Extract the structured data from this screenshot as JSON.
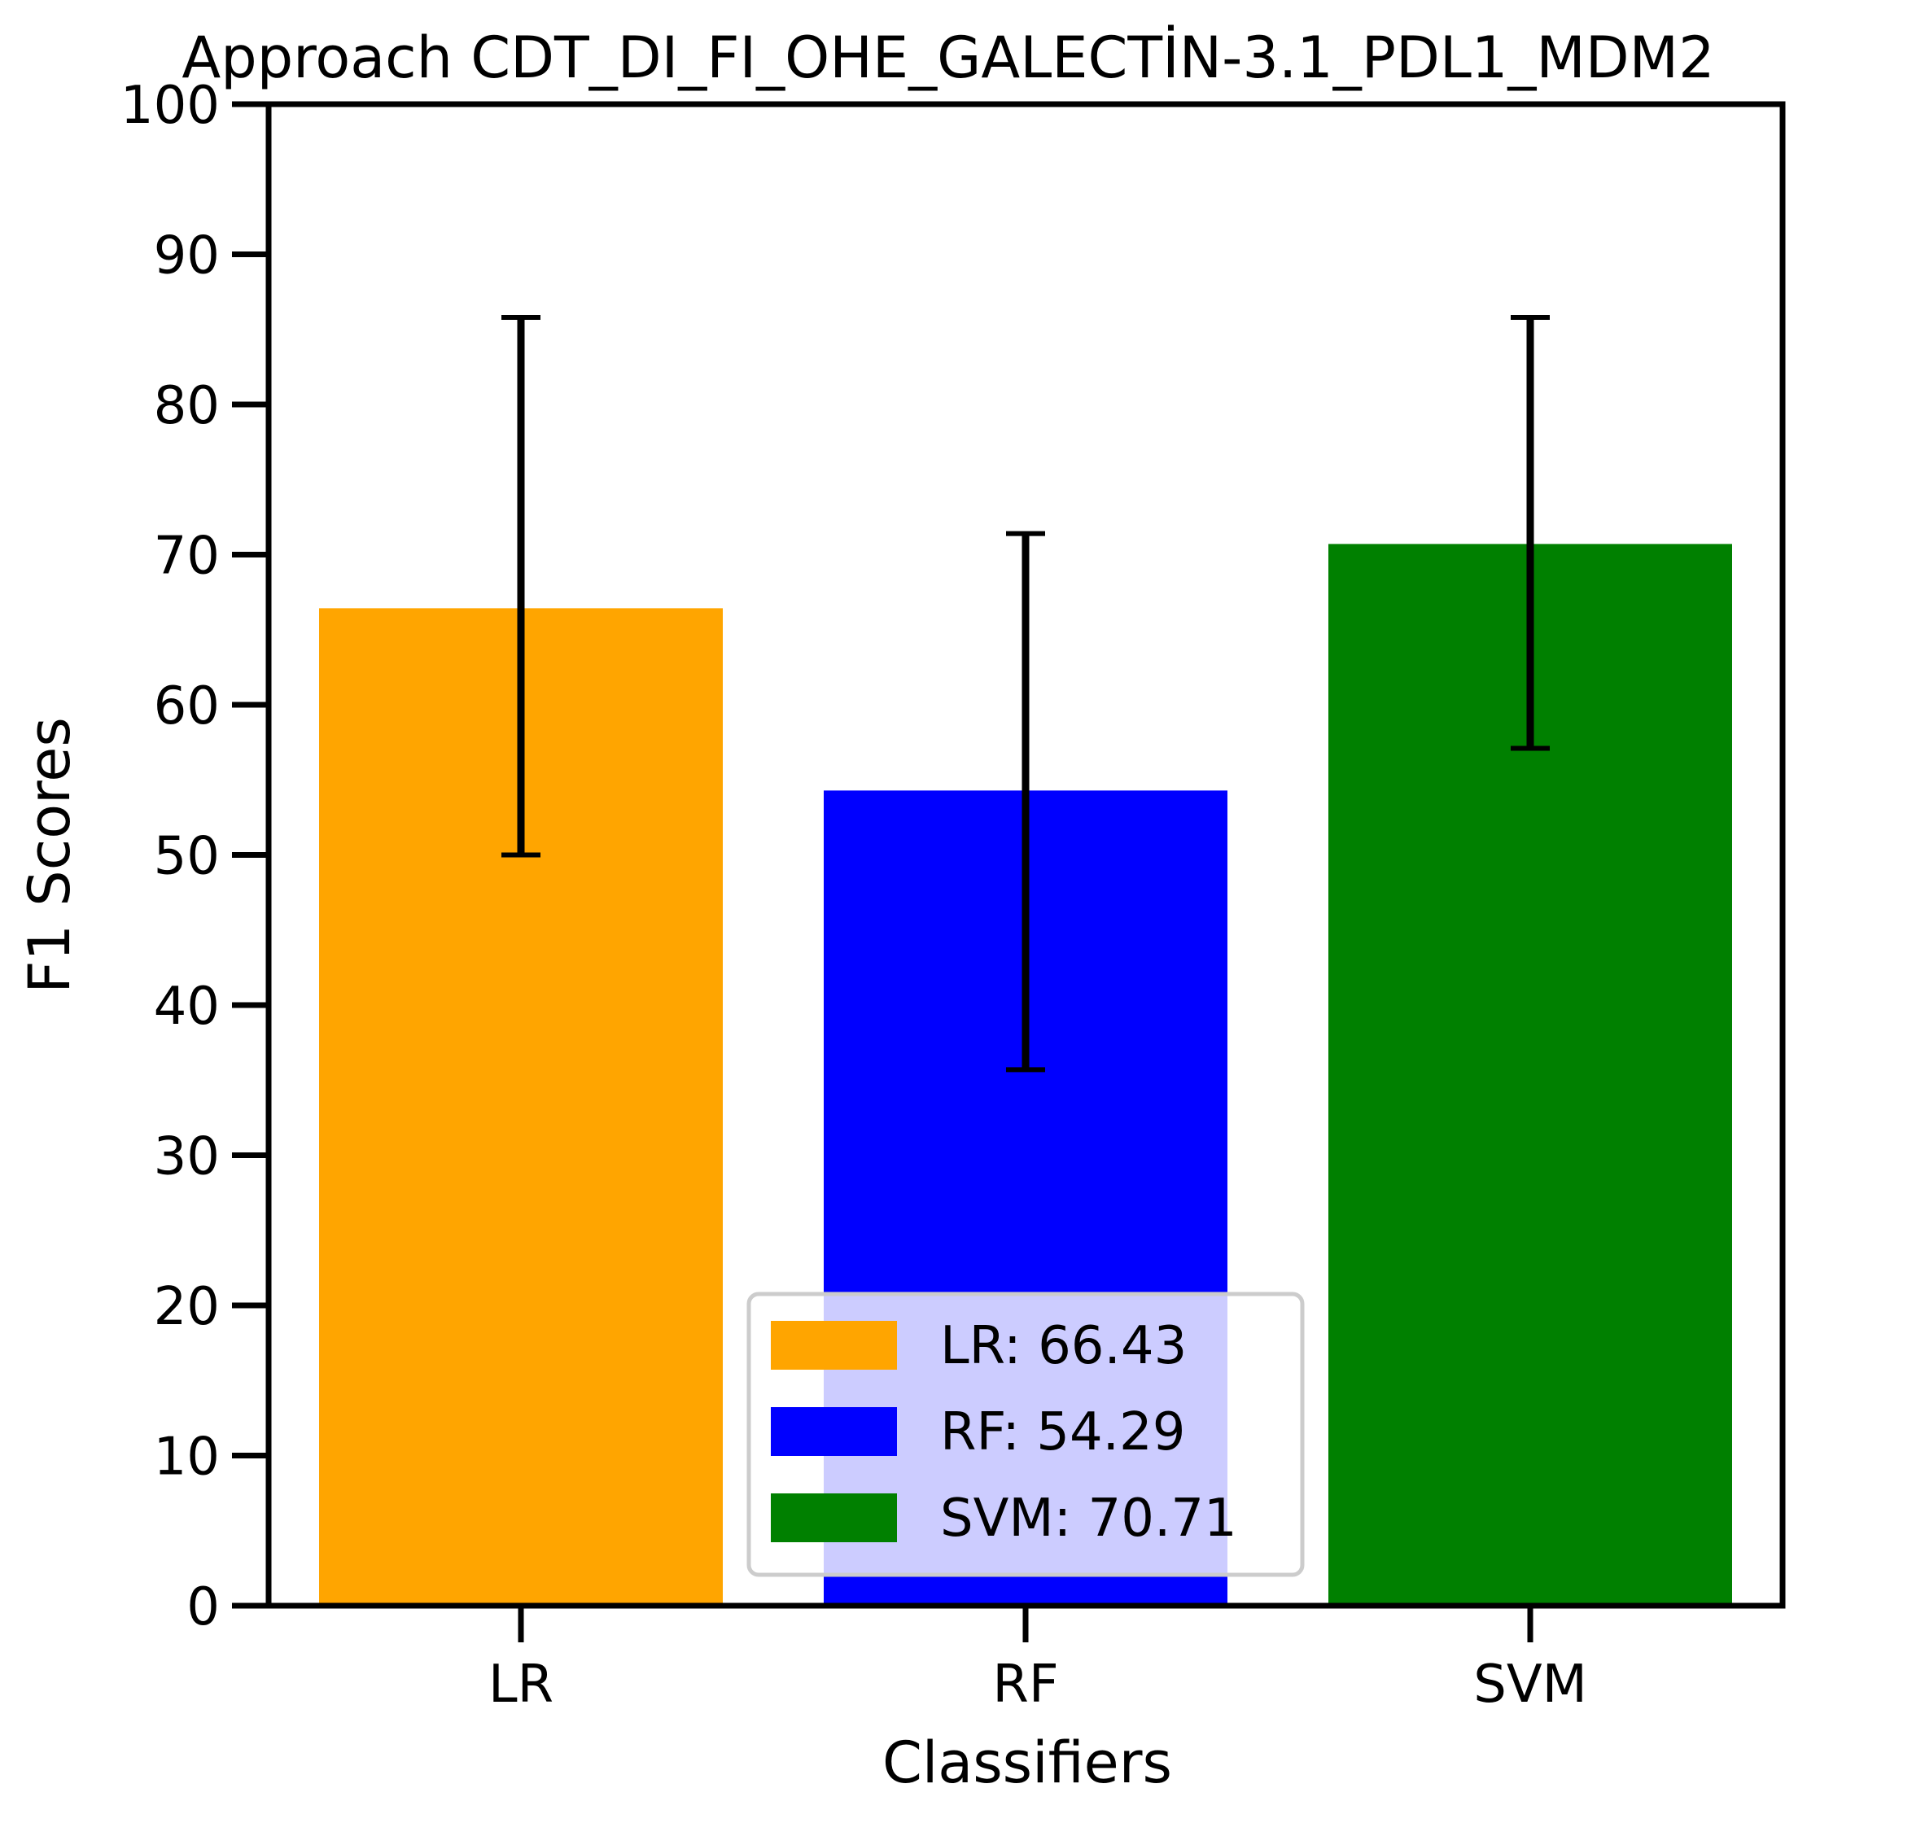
{
  "chart_data": {
    "type": "bar",
    "title": "Approach CDT_DI_FI_OHE_GALECTİN-3.1_PDL1_MDM2",
    "xlabel": "Classifiers",
    "ylabel": "F1 Scores",
    "ylim": [
      0,
      100
    ],
    "yticks": [
      0,
      10,
      20,
      30,
      40,
      50,
      60,
      70,
      80,
      90,
      100
    ],
    "categories": [
      "LR",
      "RF",
      "SVM"
    ],
    "values": [
      66.43,
      54.29,
      70.71
    ],
    "error_low": [
      50.0,
      35.7,
      57.1
    ],
    "error_high": [
      85.8,
      71.4,
      85.8
    ],
    "colors": [
      "#FFA500",
      "#0000FF",
      "#008000"
    ],
    "grid": false,
    "legend": {
      "placement": "lower-center",
      "entries": [
        {
          "label": "LR: 66.43",
          "color": "#FFA500"
        },
        {
          "label": "RF: 54.29",
          "color": "#0000FF"
        },
        {
          "label": "SVM: 70.71",
          "color": "#008000"
        }
      ]
    }
  }
}
